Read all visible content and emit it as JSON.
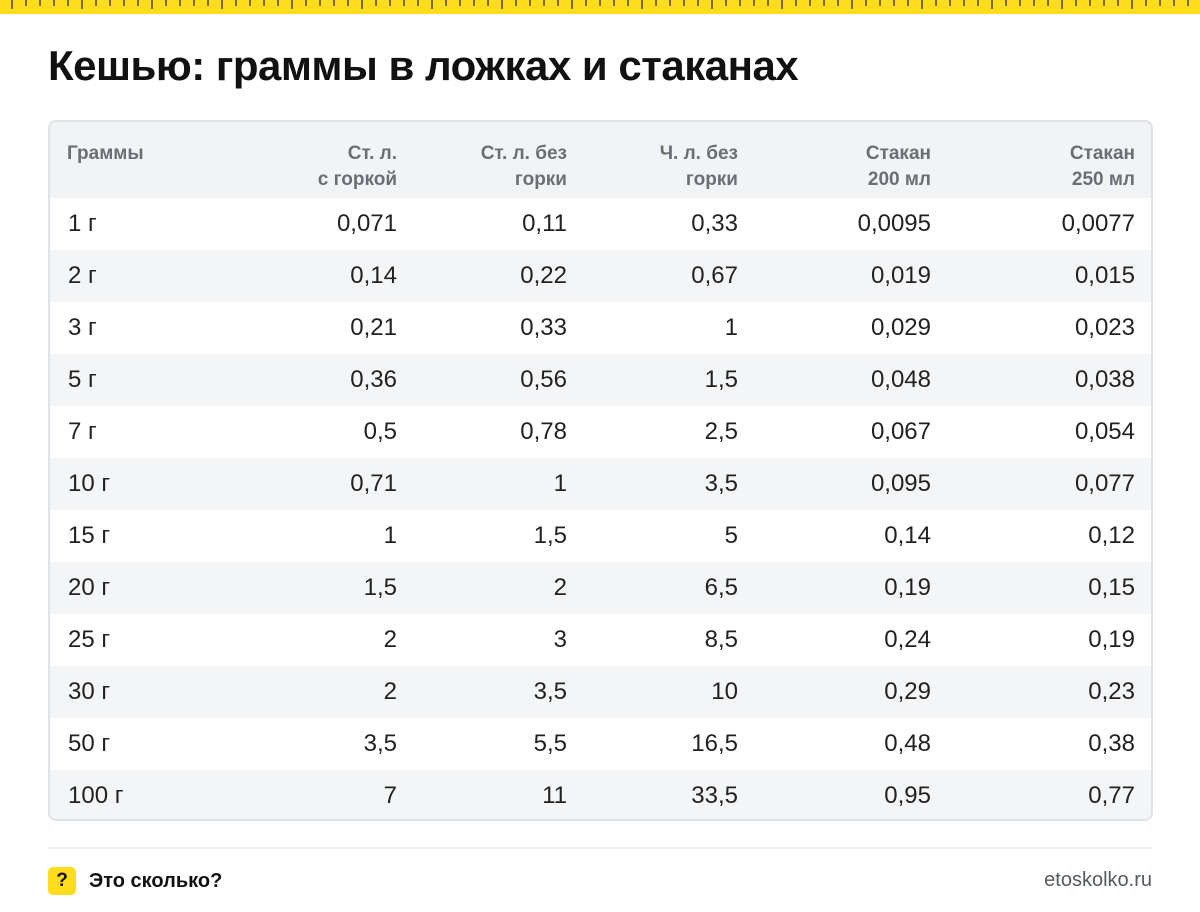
{
  "title": "Кешью: граммы в ложках и стаканах",
  "colors": {
    "accent_yellow": "#ffdd1c",
    "header_bg": "#f2f3f5",
    "zebra_bg": "#f4f5f7",
    "border": "#dfe2e6"
  },
  "table": {
    "headers": [
      [
        "Граммы"
      ],
      [
        "Ст. л.",
        "с горкой"
      ],
      [
        "Ст. л. без",
        "горки"
      ],
      [
        "Ч. л. без",
        "горки"
      ],
      [
        "Стакан",
        "200 мл"
      ],
      [
        "Стакан",
        "250 мл"
      ]
    ],
    "rows": [
      [
        "1 г",
        "0,071",
        "0,11",
        "0,33",
        "0,0095",
        "0,0077"
      ],
      [
        "2 г",
        "0,14",
        "0,22",
        "0,67",
        "0,019",
        "0,015"
      ],
      [
        "3 г",
        "0,21",
        "0,33",
        "1",
        "0,029",
        "0,023"
      ],
      [
        "5 г",
        "0,36",
        "0,56",
        "1,5",
        "0,048",
        "0,038"
      ],
      [
        "7 г",
        "0,5",
        "0,78",
        "2,5",
        "0,067",
        "0,054"
      ],
      [
        "10 г",
        "0,71",
        "1",
        "3,5",
        "0,095",
        "0,077"
      ],
      [
        "15 г",
        "1",
        "1,5",
        "5",
        "0,14",
        "0,12"
      ],
      [
        "20 г",
        "1,5",
        "2",
        "6,5",
        "0,19",
        "0,15"
      ],
      [
        "25 г",
        "2",
        "3",
        "8,5",
        "0,24",
        "0,19"
      ],
      [
        "30 г",
        "2",
        "3,5",
        "10",
        "0,29",
        "0,23"
      ],
      [
        "50 г",
        "3,5",
        "5,5",
        "16,5",
        "0,48",
        "0,38"
      ],
      [
        "100 г",
        "7",
        "11",
        "33,5",
        "0,95",
        "0,77"
      ]
    ]
  },
  "footer": {
    "icon_symbol": "?",
    "icon_name": "question-mark-icon",
    "brand_name": "Это сколько?",
    "site": "etoskolko.ru"
  }
}
